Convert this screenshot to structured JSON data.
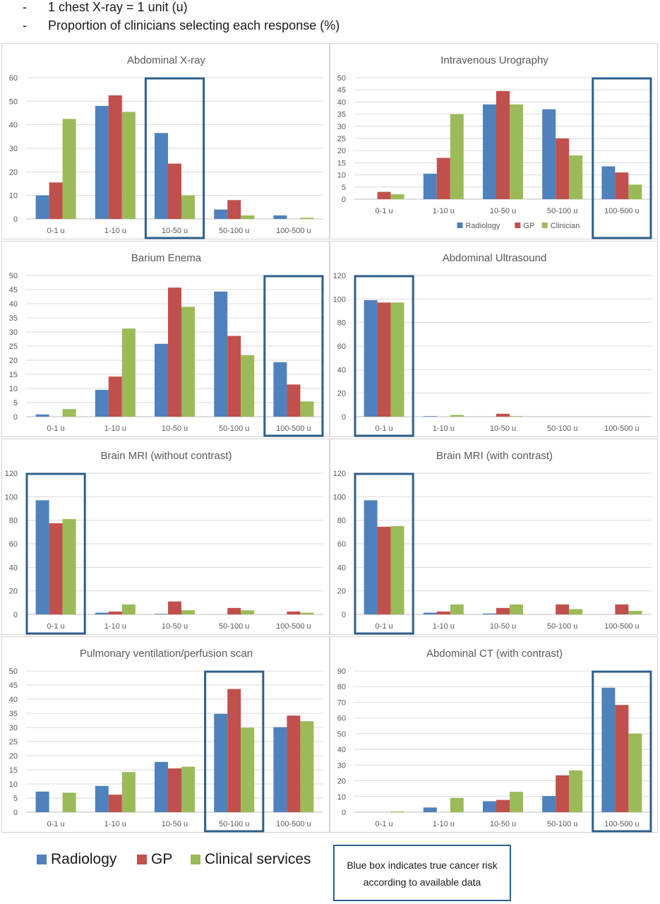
{
  "notes": [
    "1 chest X-ray = 1 unit (u)",
    "Proportion of clinicians selecting each response (%)"
  ],
  "note_dash": "-",
  "colors": {
    "Radiology": "#4f81bd",
    "GP": "#c0504d",
    "Clinician": "#9bbb59",
    "box": "#2f5f8a",
    "grid": "#d9d9d9",
    "axis_text": "#595959"
  },
  "categories": [
    "0-1 u",
    "1-10 u",
    "10-50 u",
    "50-100 u",
    "100-500 u"
  ],
  "legend": {
    "items": [
      {
        "label": "Radiology",
        "color": "#4f81bd"
      },
      {
        "label": "GP",
        "color": "#c0504d"
      },
      {
        "label": "Clinical services",
        "color": "#9bbb59"
      }
    ]
  },
  "box_note": {
    "line1": "Blue box indicates true cancer risk",
    "line2": "according to available data"
  },
  "chart_data": [
    {
      "type": "bar",
      "title": "Abdominal X-ray",
      "categories": [
        "0-1 u",
        "1-10 u",
        "10-50 u",
        "50-100 u",
        "100-500 u"
      ],
      "ylim": [
        0,
        60
      ],
      "yticks": [
        0,
        10,
        20,
        30,
        40,
        50,
        60
      ],
      "highlight": 2,
      "legend": null,
      "series": [
        {
          "key": "Radiology",
          "values": [
            10,
            48,
            36.5,
            4,
            1.5
          ]
        },
        {
          "key": "GP",
          "values": [
            15.5,
            52.5,
            23.5,
            8,
            0
          ]
        },
        {
          "key": "Clinician",
          "values": [
            42.5,
            45.5,
            10,
            1.5,
            0.5
          ]
        }
      ]
    },
    {
      "type": "bar",
      "title": "Intravenous Urography",
      "categories": [
        "0-1 u",
        "1-10 u",
        "10-50 u",
        "50-100 u",
        "100-500 u"
      ],
      "ylim": [
        0,
        50
      ],
      "yticks": [
        0,
        5,
        10,
        15,
        20,
        25,
        30,
        35,
        40,
        45,
        50
      ],
      "highlight": 4,
      "legend": [
        "Radiology",
        "GP",
        "Clinician"
      ],
      "series": [
        {
          "key": "Radiology",
          "values": [
            0,
            10.5,
            39,
            37,
            13.5
          ]
        },
        {
          "key": "GP",
          "values": [
            3,
            17,
            44.5,
            25,
            11
          ]
        },
        {
          "key": "Clinician",
          "values": [
            2,
            35,
            39,
            18,
            6
          ]
        }
      ]
    },
    {
      "type": "bar",
      "title": "Barium Enema",
      "categories": [
        "0-1 u",
        "1-10 u",
        "10-50 u",
        "50-100 u",
        "100-500 u"
      ],
      "ylim": [
        0,
        50
      ],
      "yticks": [
        0,
        5,
        10,
        15,
        20,
        25,
        30,
        35,
        40,
        45,
        50
      ],
      "highlight": 4,
      "legend": null,
      "series": [
        {
          "key": "Radiology",
          "values": [
            0.8,
            9.5,
            25.8,
            44.3,
            19.3
          ]
        },
        {
          "key": "GP",
          "values": [
            0,
            14.2,
            45.7,
            28.6,
            11.4
          ]
        },
        {
          "key": "Clinician",
          "values": [
            2.7,
            31.2,
            38.9,
            21.8,
            5.4
          ]
        }
      ]
    },
    {
      "type": "bar",
      "title": "Abdominal Ultrasound",
      "categories": [
        "0-1 u",
        "1-10 u",
        "10-50 u",
        "50-100 u",
        "100-500 u"
      ],
      "ylim": [
        0,
        120
      ],
      "yticks": [
        0,
        20,
        40,
        60,
        80,
        100,
        120
      ],
      "highlight": 0,
      "legend": null,
      "series": [
        {
          "key": "Radiology",
          "values": [
            99,
            0.5,
            0,
            0,
            0
          ]
        },
        {
          "key": "GP",
          "values": [
            97,
            0,
            2.5,
            0,
            0
          ]
        },
        {
          "key": "Clinician",
          "values": [
            97,
            1.5,
            0.5,
            0,
            0
          ]
        }
      ]
    },
    {
      "type": "bar",
      "title": "Brain MRI (without contrast)",
      "categories": [
        "0-1 u",
        "1-10 u",
        "10-50 u",
        "50-100 u",
        "100-500 u"
      ],
      "ylim": [
        0,
        120
      ],
      "yticks": [
        0,
        20,
        40,
        60,
        80,
        100,
        120
      ],
      "highlight": 0,
      "legend": null,
      "series": [
        {
          "key": "Radiology",
          "values": [
            97,
            1.5,
            0.5,
            0,
            0
          ]
        },
        {
          "key": "GP",
          "values": [
            77.5,
            2.5,
            11,
            5.5,
            2.5
          ]
        },
        {
          "key": "Clinician",
          "values": [
            81,
            8.5,
            3.5,
            3.5,
            1.5
          ]
        }
      ]
    },
    {
      "type": "bar",
      "title": "Brain MRI (with contrast)",
      "categories": [
        "0-1 u",
        "1-10 u",
        "10-50 u",
        "50-100 u",
        "100-500 u"
      ],
      "ylim": [
        0,
        120
      ],
      "yticks": [
        0,
        20,
        40,
        60,
        80,
        100,
        120
      ],
      "highlight": 0,
      "legend": null,
      "series": [
        {
          "key": "Radiology",
          "values": [
            97,
            1.5,
            0.8,
            0,
            0
          ]
        },
        {
          "key": "GP",
          "values": [
            74.5,
            2.5,
            5.5,
            8.5,
            8.5
          ]
        },
        {
          "key": "Clinician",
          "values": [
            75,
            8.5,
            8.5,
            4.5,
            3
          ]
        }
      ]
    },
    {
      "type": "bar",
      "title": "Pulmonary ventilation/perfusion scan",
      "categories": [
        "0-1 u",
        "1-10 u",
        "10-50 u",
        "50-100 u",
        "100-500 u"
      ],
      "ylim": [
        0,
        50
      ],
      "yticks": [
        0,
        5,
        10,
        15,
        20,
        25,
        30,
        35,
        40,
        45,
        50
      ],
      "highlight": 3,
      "legend": null,
      "series": [
        {
          "key": "Radiology",
          "values": [
            7.3,
            9.3,
            17.8,
            34.8,
            30.1
          ]
        },
        {
          "key": "GP",
          "values": [
            0,
            6.2,
            15.5,
            43.6,
            34.2
          ]
        },
        {
          "key": "Clinician",
          "values": [
            6.9,
            14.2,
            16.1,
            29.9,
            32.2
          ]
        }
      ]
    },
    {
      "type": "bar",
      "title": "Abdominal CT (with contrast)",
      "categories": [
        "0-1 u",
        "1-10 u",
        "10-50 u",
        "50-100 u",
        "100-500 u"
      ],
      "ylim": [
        0,
        90
      ],
      "yticks": [
        0,
        10,
        20,
        30,
        40,
        50,
        60,
        70,
        80,
        90
      ],
      "highlight": 4,
      "legend": null,
      "series": [
        {
          "key": "Radiology",
          "values": [
            0,
            3,
            7,
            10.3,
            79.3
          ]
        },
        {
          "key": "GP",
          "values": [
            0,
            0,
            7.8,
            23.5,
            68.3
          ]
        },
        {
          "key": "Clinician",
          "values": [
            0.5,
            9.1,
            13,
            26.6,
            50.1
          ]
        }
      ]
    }
  ]
}
